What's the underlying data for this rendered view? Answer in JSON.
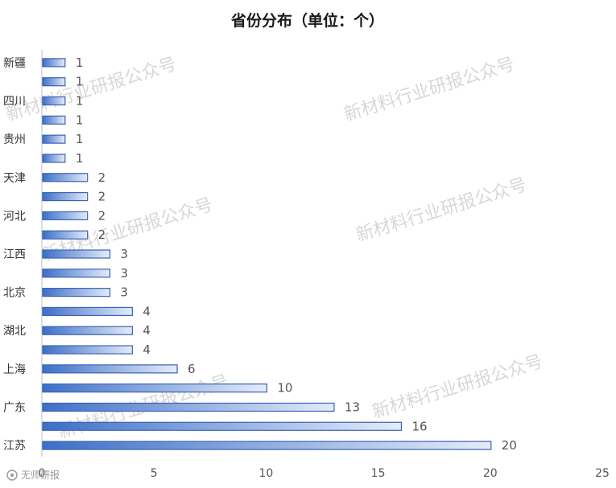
{
  "chart_data": {
    "type": "bar",
    "orientation": "horizontal",
    "title": "省份分布（单位：个）",
    "categories": [
      "新疆",
      "",
      "四川",
      "",
      "贵州",
      "",
      "天津",
      "",
      "河北",
      "",
      "江西",
      "",
      "北京",
      "",
      "湖北",
      "",
      "上海",
      "",
      "广东",
      "",
      "江苏"
    ],
    "values": [
      1,
      1,
      1,
      1,
      1,
      1,
      2,
      2,
      2,
      2,
      3,
      3,
      3,
      4,
      4,
      4,
      6,
      10,
      13,
      16,
      20
    ],
    "xlim": [
      0,
      25
    ],
    "xticks": [
      0,
      5,
      10,
      15,
      20,
      25
    ],
    "grid": false,
    "bar_color_start": "#3d6fc7",
    "bar_color_end": "#e4ecf9",
    "bar_border": "#3b63b5"
  },
  "watermarks": [
    "新材料行业研报公众号",
    "新材料行业研报公众号",
    "新材料行业研报公众号",
    "新材料行业研报公众号",
    "新材料行业研报公众号",
    "新材料行业研报公众号"
  ],
  "logo": {
    "text": "无师研报",
    "icon": "logo-icon"
  }
}
